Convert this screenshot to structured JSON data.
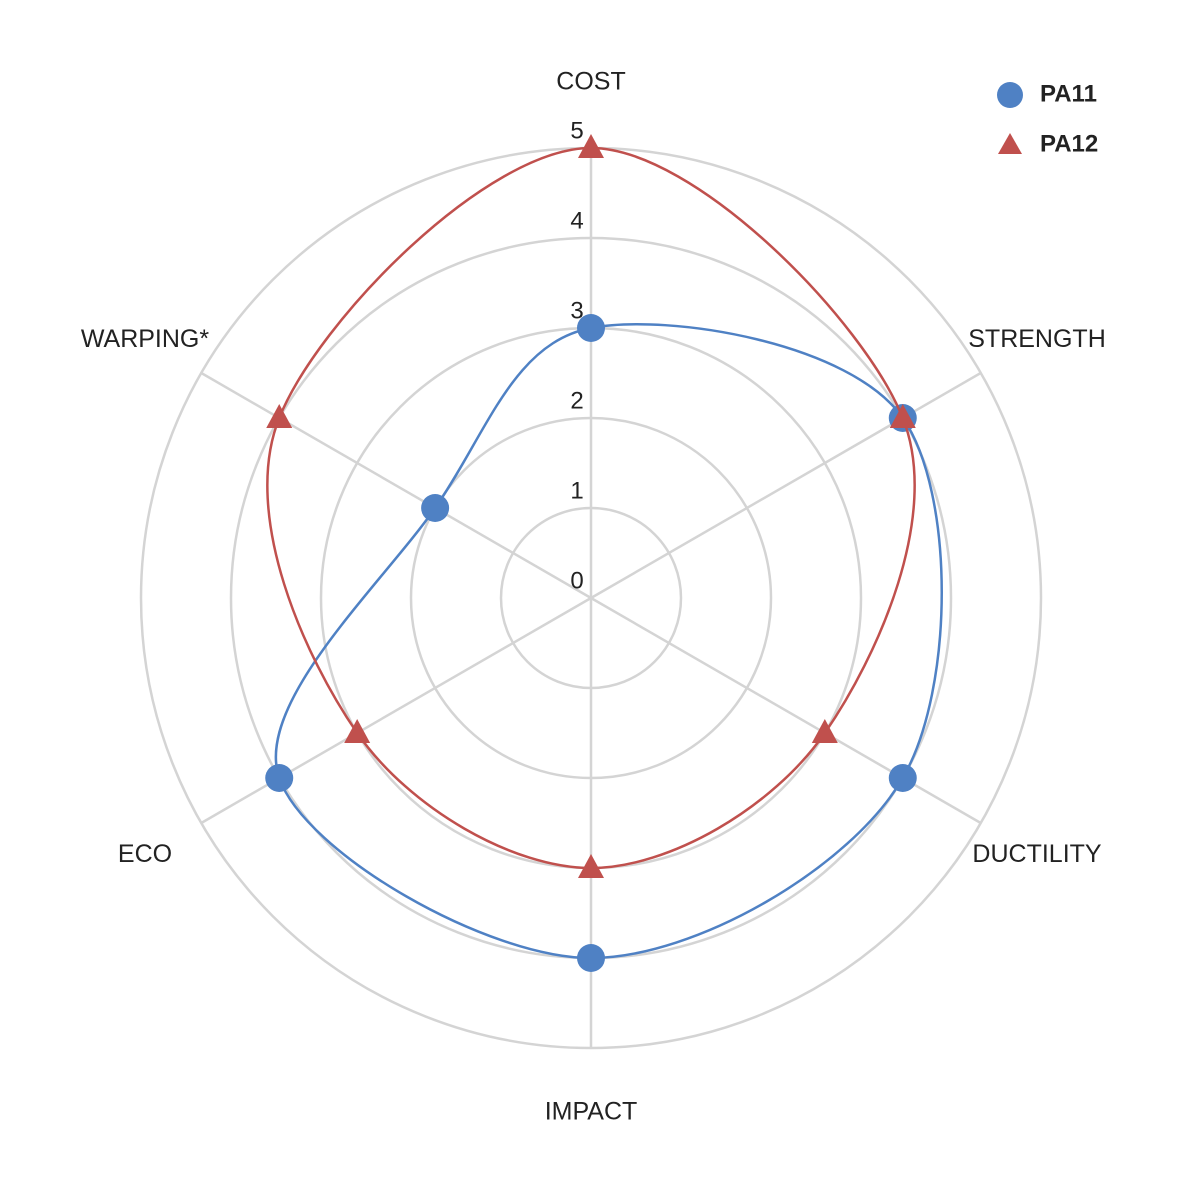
{
  "chart_data": {
    "type": "radar",
    "categories": [
      "COST",
      "STRENGTH",
      "DUCTILITY",
      "IMPACT",
      "ECO",
      "WARPING*"
    ],
    "series": [
      {
        "name": "PA11",
        "color": "#4f81c4",
        "marker": "circle",
        "values": [
          3,
          4,
          4,
          4,
          4,
          2
        ]
      },
      {
        "name": "PA12",
        "color": "#c0504d",
        "marker": "triangle",
        "values": [
          5,
          4,
          3,
          3,
          3,
          4
        ]
      }
    ],
    "ylim": [
      0,
      5
    ],
    "yticks": [
      0,
      1,
      2,
      3,
      4,
      5
    ],
    "grid": true,
    "legend": "top-right"
  }
}
